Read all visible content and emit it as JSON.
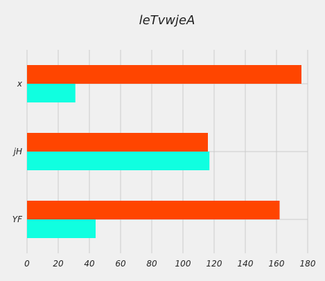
{
  "chart_data": {
    "type": "bar",
    "orientation": "horizontal",
    "title": "leTvwjeA",
    "xlabel": "",
    "ylabel": "",
    "categories": [
      "YF",
      "jH",
      "x"
    ],
    "series": [
      {
        "values": [
          44,
          117,
          31
        ],
        "color": "#10ffe0"
      },
      {
        "values": [
          162,
          116,
          176
        ],
        "color": "#ff4500"
      }
    ],
    "xlim": [
      0,
      180
    ],
    "xticks": [
      0,
      20,
      40,
      60,
      80,
      100,
      120,
      140,
      160,
      180
    ],
    "grid": true,
    "legend": "none"
  },
  "colors": {
    "background": "#f0f0f0",
    "grid": "#cbcbcb",
    "text": "#222222"
  }
}
